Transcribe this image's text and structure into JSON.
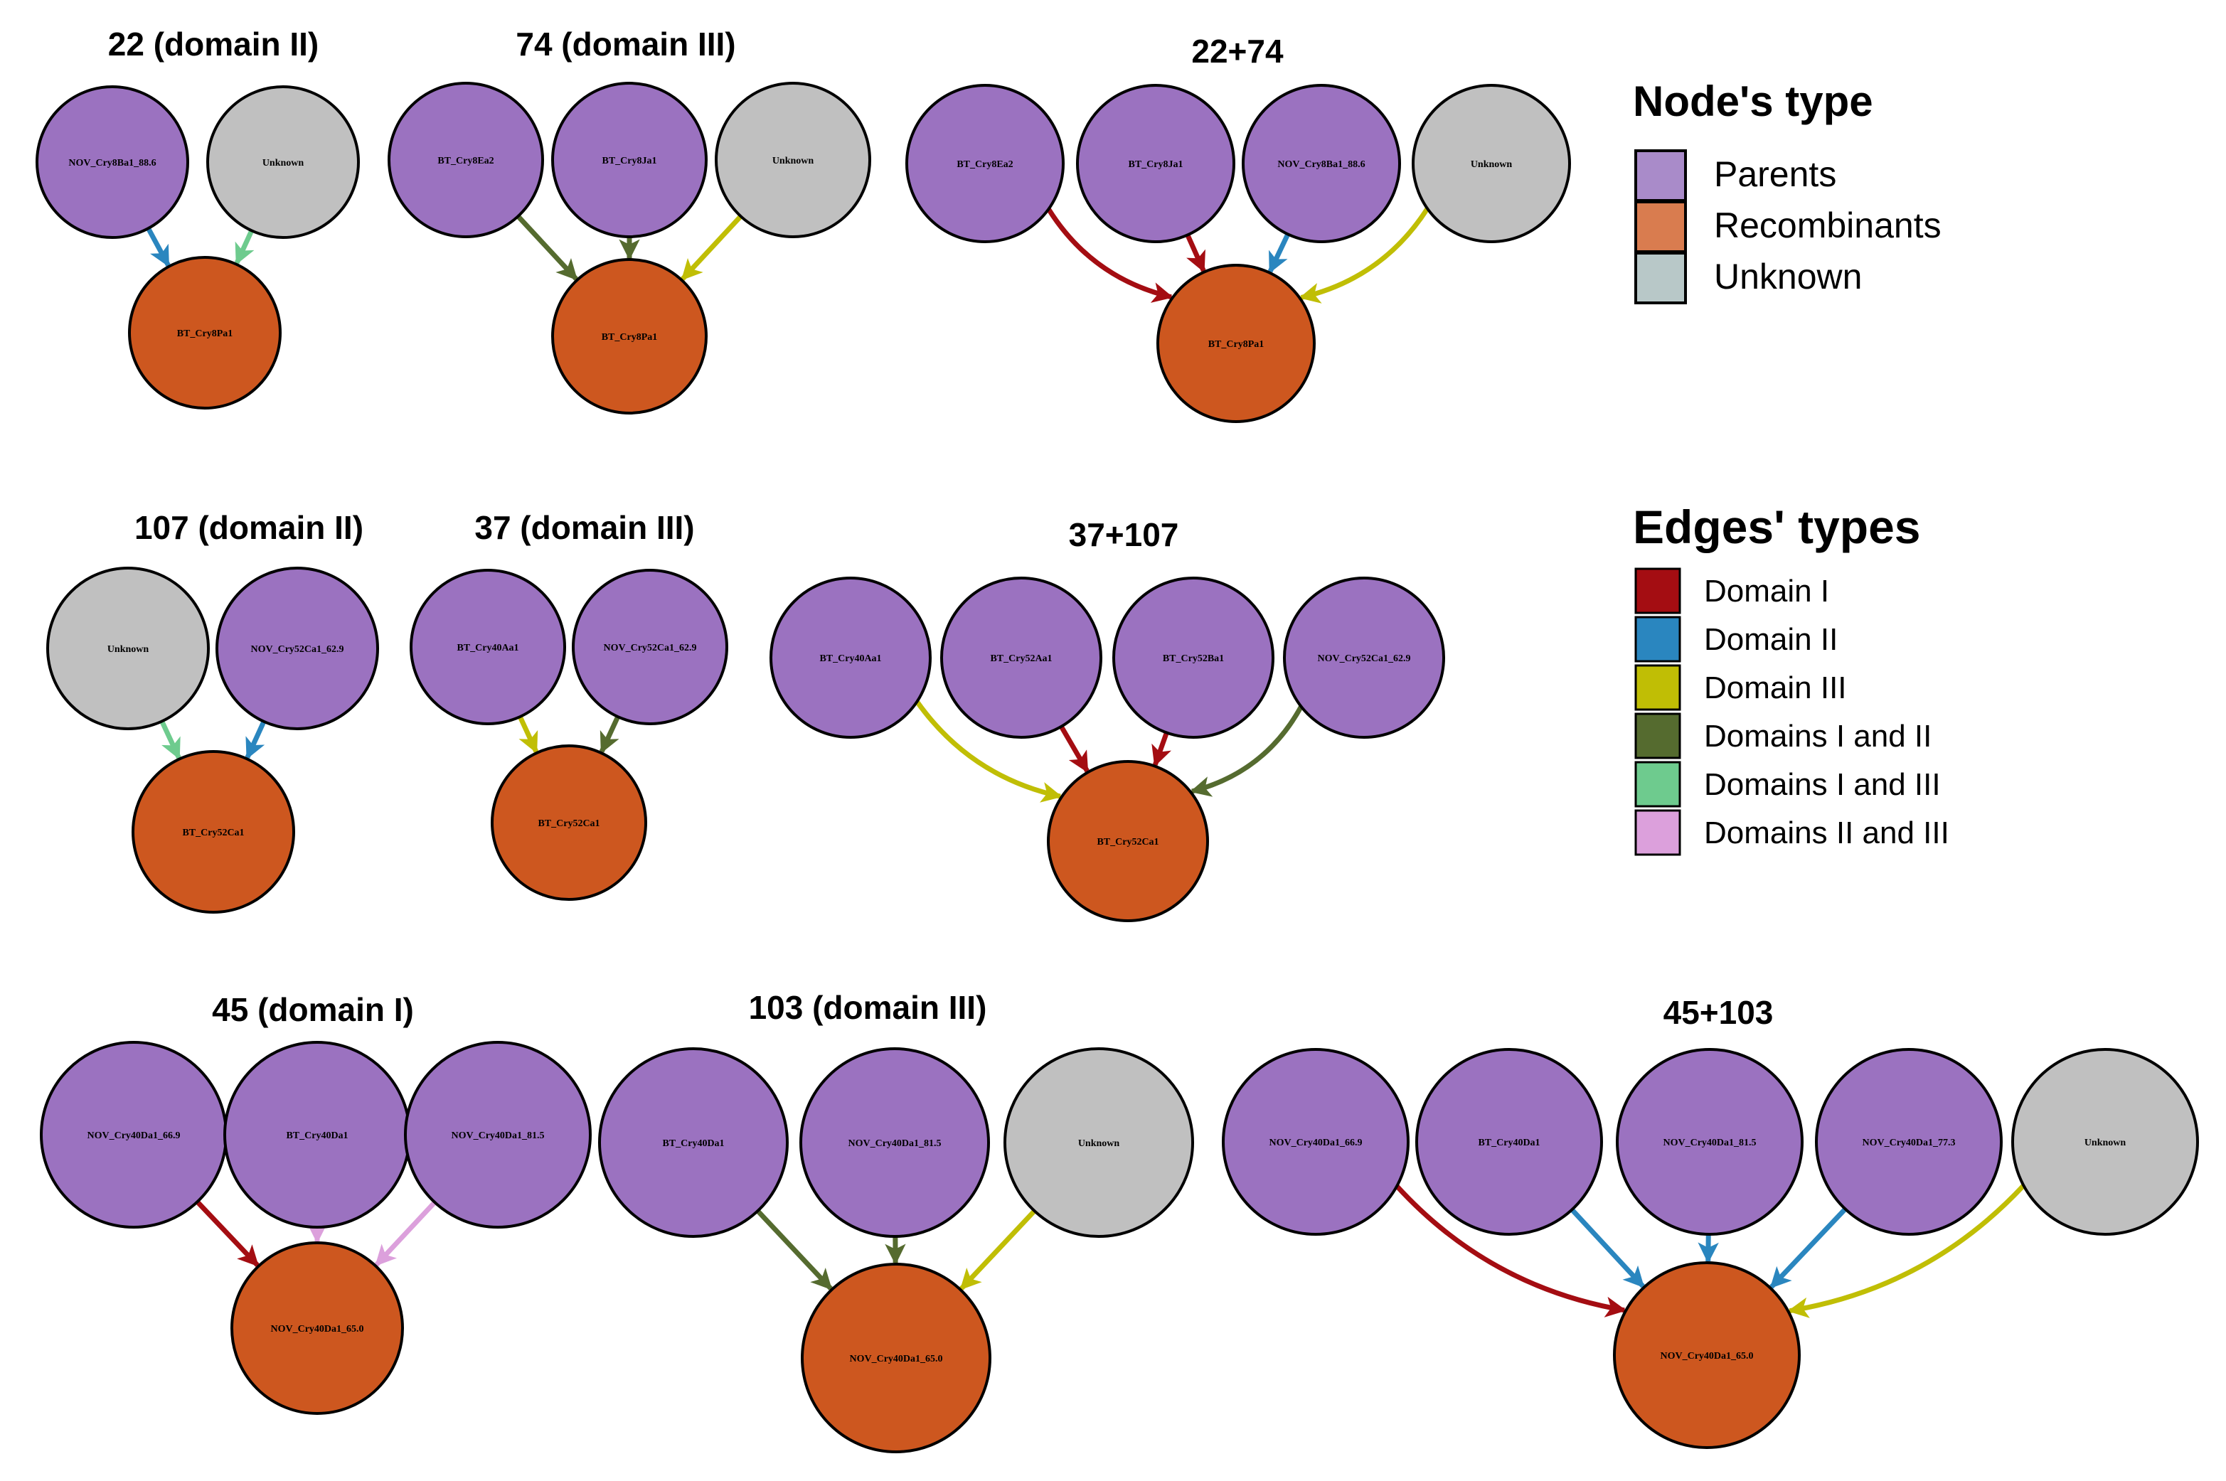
{
  "colors": {
    "parent": "#9b72c0",
    "recombinant": "#cd571f",
    "unknown": "#c0c0c0",
    "domain_i": "#a40d12",
    "domain_ii": "#2a86bf",
    "domain_iii": "#c0be05",
    "domains_i_ii": "#556b2f",
    "domains_i_iii": "#6ecb8e",
    "domains_ii_iii": "#dca0dc"
  },
  "panels": [
    {
      "title": "22 (domain II)",
      "nodes": [
        {
          "label": "NOV_Cry8Ba1_88.6",
          "type": "parent"
        },
        {
          "label": "Unknown",
          "type": "unknown"
        },
        {
          "label": "BT_Cry8Pa1",
          "type": "recombinant"
        }
      ],
      "edges": [
        {
          "from": 0,
          "to": 2,
          "type": "domain_ii"
        },
        {
          "from": 1,
          "to": 2,
          "type": "domains_i_iii"
        }
      ]
    },
    {
      "title": "74 (domain III)",
      "nodes": [
        {
          "label": "BT_Cry8Ea2",
          "type": "parent"
        },
        {
          "label": "BT_Cry8Ja1",
          "type": "parent"
        },
        {
          "label": "Unknown",
          "type": "unknown"
        },
        {
          "label": "BT_Cry8Pa1",
          "type": "recombinant"
        }
      ],
      "edges": [
        {
          "from": 0,
          "to": 3,
          "type": "domains_i_ii"
        },
        {
          "from": 1,
          "to": 3,
          "type": "domains_i_ii"
        },
        {
          "from": 2,
          "to": 3,
          "type": "domain_iii"
        }
      ]
    },
    {
      "title": "22+74",
      "nodes": [
        {
          "label": "BT_Cry8Ea2",
          "type": "parent"
        },
        {
          "label": "BT_Cry8Ja1",
          "type": "parent"
        },
        {
          "label": "NOV_Cry8Ba1_88.6",
          "type": "parent"
        },
        {
          "label": "Unknown",
          "type": "unknown"
        },
        {
          "label": "BT_Cry8Pa1",
          "type": "recombinant"
        }
      ],
      "edges": [
        {
          "from": 0,
          "to": 4,
          "type": "domain_i"
        },
        {
          "from": 1,
          "to": 4,
          "type": "domain_i"
        },
        {
          "from": 2,
          "to": 4,
          "type": "domain_ii"
        },
        {
          "from": 3,
          "to": 4,
          "type": "domain_iii"
        }
      ]
    },
    {
      "title": "107 (domain II)",
      "nodes": [
        {
          "label": "Unknown",
          "type": "unknown"
        },
        {
          "label": "NOV_Cry52Ca1_62.9",
          "type": "parent"
        },
        {
          "label": "BT_Cry52Ca1",
          "type": "recombinant"
        }
      ],
      "edges": [
        {
          "from": 0,
          "to": 2,
          "type": "domains_i_iii"
        },
        {
          "from": 1,
          "to": 2,
          "type": "domain_ii"
        }
      ]
    },
    {
      "title": "37 (domain III)",
      "nodes": [
        {
          "label": "BT_Cry40Aa1",
          "type": "parent"
        },
        {
          "label": "NOV_Cry52Ca1_62.9",
          "type": "parent"
        },
        {
          "label": "BT_Cry52Ca1",
          "type": "recombinant"
        }
      ],
      "edges": [
        {
          "from": 0,
          "to": 2,
          "type": "domain_iii"
        },
        {
          "from": 1,
          "to": 2,
          "type": "domains_i_ii"
        }
      ]
    },
    {
      "title": "37+107",
      "nodes": [
        {
          "label": "BT_Cry40Aa1",
          "type": "parent"
        },
        {
          "label": "BT_Cry52Aa1",
          "type": "parent"
        },
        {
          "label": "BT_Cry52Ba1",
          "type": "parent"
        },
        {
          "label": "NOV_Cry52Ca1_62.9",
          "type": "parent"
        },
        {
          "label": "BT_Cry52Ca1",
          "type": "recombinant"
        }
      ],
      "edges": [
        {
          "from": 0,
          "to": 4,
          "type": "domain_iii"
        },
        {
          "from": 1,
          "to": 4,
          "type": "domain_i"
        },
        {
          "from": 2,
          "to": 4,
          "type": "domain_i"
        },
        {
          "from": 3,
          "to": 4,
          "type": "domains_i_ii"
        }
      ]
    },
    {
      "title": "45 (domain I)",
      "nodes": [
        {
          "label": "NOV_Cry40Da1_66.9",
          "type": "parent"
        },
        {
          "label": "BT_Cry40Da1",
          "type": "parent"
        },
        {
          "label": "NOV_Cry40Da1_81.5",
          "type": "parent"
        },
        {
          "label": "NOV_Cry40Da1_65.0",
          "type": "recombinant"
        }
      ],
      "edges": [
        {
          "from": 0,
          "to": 3,
          "type": "domain_i"
        },
        {
          "from": 1,
          "to": 3,
          "type": "domains_ii_iii"
        },
        {
          "from": 2,
          "to": 3,
          "type": "domains_ii_iii"
        }
      ]
    },
    {
      "title": "103 (domain III)",
      "nodes": [
        {
          "label": "BT_Cry40Da1",
          "type": "parent"
        },
        {
          "label": "NOV_Cry40Da1_81.5",
          "type": "parent"
        },
        {
          "label": "Unknown",
          "type": "unknown"
        },
        {
          "label": "NOV_Cry40Da1_65.0",
          "type": "recombinant"
        }
      ],
      "edges": [
        {
          "from": 0,
          "to": 3,
          "type": "domains_i_ii"
        },
        {
          "from": 1,
          "to": 3,
          "type": "domains_i_ii"
        },
        {
          "from": 2,
          "to": 3,
          "type": "domain_iii"
        }
      ]
    },
    {
      "title": "45+103",
      "nodes": [
        {
          "label": "NOV_Cry40Da1_66.9",
          "type": "parent"
        },
        {
          "label": "BT_Cry40Da1",
          "type": "parent"
        },
        {
          "label": "NOV_Cry40Da1_81.5",
          "type": "parent"
        },
        {
          "label": "NOV_Cry40Da1_77.3",
          "type": "parent"
        },
        {
          "label": "Unknown",
          "type": "unknown"
        },
        {
          "label": "NOV_Cry40Da1_65.0",
          "type": "recombinant"
        }
      ],
      "edges": [
        {
          "from": 0,
          "to": 5,
          "type": "domain_i"
        },
        {
          "from": 1,
          "to": 5,
          "type": "domain_ii"
        },
        {
          "from": 2,
          "to": 5,
          "type": "domain_ii"
        },
        {
          "from": 3,
          "to": 5,
          "type": "domain_ii"
        },
        {
          "from": 4,
          "to": 5,
          "type": "domain_iii"
        }
      ]
    }
  ],
  "legend_nodes": {
    "title": "Node's type",
    "items": [
      {
        "label": "Parents",
        "color": "#a98bc9"
      },
      {
        "label": "Recombinants",
        "color": "#d97c4f"
      },
      {
        "label": "Unknown",
        "color": "#b8c8c8"
      }
    ]
  },
  "legend_edges": {
    "title": "Edges' types",
    "items": [
      {
        "label": "Domain I",
        "color": "#a40d12"
      },
      {
        "label": "Domain II",
        "color": "#2a86bf"
      },
      {
        "label": "Domain III",
        "color": "#c0be05"
      },
      {
        "label": "Domains I and II",
        "color": "#556b2f"
      },
      {
        "label": "Domains I and III",
        "color": "#6ecb8e"
      },
      {
        "label": "Domains II and III",
        "color": "#dca0dc"
      }
    ]
  }
}
